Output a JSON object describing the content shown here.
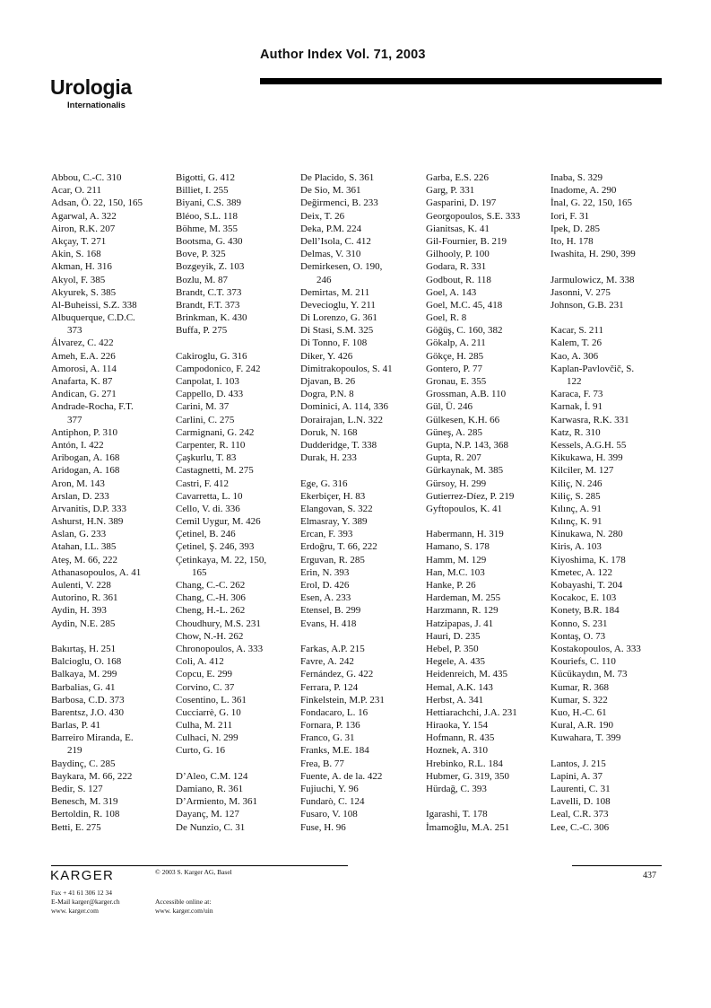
{
  "header": {
    "title": "Author Index Vol. 71, 2003",
    "journal_name": "Urologia",
    "journal_subname": "Internationalis"
  },
  "columns": [
    [
      [
        "Abbou, C.-C.  310"
      ],
      [
        "Acar, O.  211"
      ],
      [
        "Adsan, Ö.  22, 150, 165"
      ],
      [
        "Agarwal, A.  322"
      ],
      [
        "Airon, R.K.  207"
      ],
      [
        "Akçay, T.  271"
      ],
      [
        "Akin, S.  168"
      ],
      [
        "Akman, H.  316"
      ],
      [
        "Akyol, F.  385"
      ],
      [
        "Akyurek, S.  385"
      ],
      [
        "Al-Buheissi, S.Z.  338"
      ],
      [
        "Albuquerque, C.D.C.",
        "373"
      ],
      [
        "Álvarez, C.  422"
      ],
      [
        "Ameh, E.A.  226"
      ],
      [
        "Amorosi, A.  114"
      ],
      [
        "Anafarta, K.  87"
      ],
      [
        "Andican, G.  271"
      ],
      [
        "Andrade-Rocha, F.T.",
        "377"
      ],
      [
        "Antiphon, P.  310"
      ],
      [
        "Antón, I.  422"
      ],
      [
        "Aribogan, A.  168"
      ],
      [
        "Aridogan, A.  168"
      ],
      [
        "Aron, M.  143"
      ],
      [
        "Arslan, D.  233"
      ],
      [
        "Arvanitis, D.P.  333"
      ],
      [
        "Ashurst, H.N.  389"
      ],
      [
        "Aslan, G.  233"
      ],
      [
        "Atahan, I.L.  385"
      ],
      [
        "Ateş, M.  66, 222"
      ],
      [
        "Athanasopoulos, A.  41"
      ],
      [
        "Aulenti, V.  228"
      ],
      [
        "Autorino, R.  361"
      ],
      [
        "Aydin, H.  393"
      ],
      [
        "Aydin, N.E.  285"
      ],
      [],
      [
        "Bakırtaş, H.  251"
      ],
      [
        "Balcioglu, O.  168"
      ],
      [
        "Balkaya, M.  299"
      ],
      [
        "Barbalias, G.  41"
      ],
      [
        "Barbosa, C.D.  373"
      ],
      [
        "Barentsz, J.O.  430"
      ],
      [
        "Barlas, P.  41"
      ],
      [
        "Barreiro Miranda, E.",
        "219"
      ],
      [
        "Baydinç, C.  285"
      ],
      [
        "Baykara, M.  66, 222"
      ],
      [
        "Bedir, S.  127"
      ],
      [
        "Benesch, M.  319"
      ],
      [
        "Bertoldin, R.  108"
      ],
      [
        "Betti, E.  275"
      ]
    ],
    [
      [
        "Bigotti, G.  412"
      ],
      [
        "Billiet, I.  255"
      ],
      [
        "Biyani, C.S.  389"
      ],
      [
        "Bléoo, S.L.  118"
      ],
      [
        "Böhme, M.  355"
      ],
      [
        "Bootsma, G.  430"
      ],
      [
        "Bove, P.  325"
      ],
      [
        "Bozgeyik, Z.  103"
      ],
      [
        "Bozlu, M.  87"
      ],
      [
        "Brandt, C.T.  373"
      ],
      [
        "Brandt, F.T.  373"
      ],
      [
        "Brinkman, K.  430"
      ],
      [
        "Buffa, P.  275"
      ],
      [],
      [
        "Cakiroglu, G.  316"
      ],
      [
        "Campodonico, F.  242"
      ],
      [
        "Canpolat, I.  103"
      ],
      [
        "Cappello, D.  433"
      ],
      [
        "Carini, M.  37"
      ],
      [
        "Carlini, C.  275"
      ],
      [
        "Carmignani, G.  242"
      ],
      [
        "Carpenter, R.  110"
      ],
      [
        "Çaşkurlu, T.  83"
      ],
      [
        "Castagnetti, M.  275"
      ],
      [
        "Castri, F.  412"
      ],
      [
        "Cavarretta, L.  10"
      ],
      [
        "Cello, V. di.  336"
      ],
      [
        "Cemil Uygur, M.  426"
      ],
      [
        "Çetinel, B.  246"
      ],
      [
        "Çetinel, Ş.  246, 393"
      ],
      [
        "Çetinkaya, M.  22, 150,",
        "165"
      ],
      [
        "Chang, C.-C.  262"
      ],
      [
        "Chang, C.-H.  306"
      ],
      [
        "Cheng, H.-L.  262"
      ],
      [
        "Choudhury, M.S.  231"
      ],
      [
        "Chow, N.-H.  262"
      ],
      [
        "Chronopoulos, A.  333"
      ],
      [
        "Coli, A.  412"
      ],
      [
        "Copcu, E.  299"
      ],
      [
        "Corvino, C.  37"
      ],
      [
        "Cosentino, L.  361"
      ],
      [
        "Cucciarrè, G.  10"
      ],
      [
        "Culha, M.  211"
      ],
      [
        "Culhaci, N.  299"
      ],
      [
        "Curto, G.  16"
      ],
      [],
      [
        "D’Aleo, C.M.  124"
      ],
      [
        "Damiano, R.  361"
      ],
      [
        "D’Armiento, M.  361"
      ],
      [
        "Dayanç, M.  127"
      ],
      [
        "De Nunzio, C.  31"
      ]
    ],
    [
      [
        "De Placido, S.  361"
      ],
      [
        "De Sio, M.  361"
      ],
      [
        "Değirmenci, B.  233"
      ],
      [
        "Deix, T.  26"
      ],
      [
        "Deka, P.M.  224"
      ],
      [
        "Dell’Isola, C.  412"
      ],
      [
        "Delmas, V.  310"
      ],
      [
        "Demirkesen, O.  190,",
        "246"
      ],
      [
        "Demirtas, M.  211"
      ],
      [
        "Devecioglu, Y.  211"
      ],
      [
        "Di Lorenzo, G.  361"
      ],
      [
        "Di Stasi, S.M.  325"
      ],
      [
        "Di Tonno, F.  108"
      ],
      [
        "Diker, Y.  426"
      ],
      [
        "Dimitrakopoulos, S.  41"
      ],
      [
        "Djavan, B.  26"
      ],
      [
        "Dogra, P.N.  8"
      ],
      [
        "Dominici, A.  114, 336"
      ],
      [
        "Dorairajan, L.N.  322"
      ],
      [
        "Doruk, N.  168"
      ],
      [
        "Dudderidge, T.  338"
      ],
      [
        "Durak, H.  233"
      ],
      [],
      [
        "Ege, G.  316"
      ],
      [
        "Ekerbiçer, H.  83"
      ],
      [
        "Elangovan, S.  322"
      ],
      [
        "Elmasray, Y.  389"
      ],
      [
        "Ercan, F.  393"
      ],
      [
        "Erdoğru, T.  66, 222"
      ],
      [
        "Erguvan, R.  285"
      ],
      [
        "Erin, N.  393"
      ],
      [
        "Erol, D.  426"
      ],
      [
        "Esen, A.  233"
      ],
      [
        "Etensel, B.  299"
      ],
      [
        "Evans, H.  418"
      ],
      [],
      [
        "Farkas, A.P.  215"
      ],
      [
        "Favre, A.  242"
      ],
      [
        "Fernández, G.  422"
      ],
      [
        "Ferrara, P.  124"
      ],
      [
        "Finkelstein, M.P.  231"
      ],
      [
        "Fondacaro, L.  16"
      ],
      [
        "Fornara, P.  136"
      ],
      [
        "Franco, G.  31"
      ],
      [
        "Franks, M.E.  184"
      ],
      [
        "Frea, B.  77"
      ],
      [
        "Fuente, A. de la.  422"
      ],
      [
        "Fujiuchi, Y.  96"
      ],
      [
        "Fundarò, C.  124"
      ],
      [
        "Fusaro, V.  108"
      ],
      [
        "Fuse, H.  96"
      ]
    ],
    [
      [
        "Garba, E.S.  226"
      ],
      [
        "Garg, P.  331"
      ],
      [
        "Gasparini, D.  197"
      ],
      [
        "Georgopoulos, S.E.  333"
      ],
      [
        "Gianitsas, K.  41"
      ],
      [
        "Gil-Fournier, B.  219"
      ],
      [
        "Gilhooly, P.  100"
      ],
      [
        "Godara, R.  331"
      ],
      [
        "Godbout, R.  118"
      ],
      [
        "Goel, A.  143"
      ],
      [
        "Goel, M.C.  45, 418"
      ],
      [
        "Goel, R.  8"
      ],
      [
        "Göğüş, C.  160, 382"
      ],
      [
        "Gökalp, A.  211"
      ],
      [
        "Gökçe, H.  285"
      ],
      [
        "Gontero, P.  77"
      ],
      [
        "Gronau, E.  355"
      ],
      [
        "Grossman, A.B.  110"
      ],
      [
        "Gül, Ü.  246"
      ],
      [
        "Gülkesen, K.H.  66"
      ],
      [
        "Güneş, A.  285"
      ],
      [
        "Gupta, N.P.  143, 368"
      ],
      [
        "Gupta, R.  207"
      ],
      [
        "Gürkaynak, M.  385"
      ],
      [
        "Gürsoy, H.  299"
      ],
      [
        "Gutierrez-Díez, P.  219"
      ],
      [
        "Gyftopoulos, K.  41"
      ],
      [],
      [
        "Habermann, H.  319"
      ],
      [
        "Hamano, S.  178"
      ],
      [
        "Hamm, M.  129"
      ],
      [
        "Han, M.C.  103"
      ],
      [
        "Hanke, P.  26"
      ],
      [
        "Hardeman, M.  255"
      ],
      [
        "Harzmann, R.  129"
      ],
      [
        "Hatzipapas, J.  41"
      ],
      [
        "Hauri, D.  235"
      ],
      [
        "Hebel, P.  350"
      ],
      [
        "Hegele, A.  435"
      ],
      [
        "Heidenreich, M.  435"
      ],
      [
        "Hemal, A.K.  143"
      ],
      [
        "Herbst, A.  341"
      ],
      [
        "Hettiarachchi, J.A.  231"
      ],
      [
        "Hiraoka, Y.  154"
      ],
      [
        "Hofmann, R.  435"
      ],
      [
        "Hoznek, A.  310"
      ],
      [
        "Hrebinko, R.L.  184"
      ],
      [
        "Hubmer, G.  319, 350"
      ],
      [
        "Hürdağ, C.  393"
      ],
      [],
      [
        "Igarashi, T.  178"
      ],
      [
        "İmamoğlu, M.A.  251"
      ]
    ],
    [
      [
        "Inaba, S.  329"
      ],
      [
        "Inadome, A.  290"
      ],
      [
        "İnal, G.  22, 150, 165"
      ],
      [
        "Iori, F.  31"
      ],
      [
        "Ipek, D.  285"
      ],
      [
        "Ito, H.  178"
      ],
      [
        "Iwashita, H.  290, 399"
      ],
      [],
      [
        "Jarmulowicz, M.  338"
      ],
      [
        "Jasonni, V.  275"
      ],
      [
        "Johnson, G.B.  231"
      ],
      [],
      [
        "Kacar, S.  211"
      ],
      [
        "Kalem, T.  26"
      ],
      [
        "Kao, A.  306"
      ],
      [
        "Kaplan-Pavlovčič, S.",
        "122"
      ],
      [
        "Karaca, F.  73"
      ],
      [
        "Karnak, İ.  91"
      ],
      [
        "Karwasra, R.K.  331"
      ],
      [
        "Katz, R.  310"
      ],
      [
        "Kessels, A.G.H.  55"
      ],
      [
        "Kikukawa, H.  399"
      ],
      [
        "Kilciler, M.  127"
      ],
      [
        "Kiliç, N.  246"
      ],
      [
        "Kiliç, S.  285"
      ],
      [
        "Kılınç, A.  91"
      ],
      [
        "Kılınç, K.  91"
      ],
      [
        "Kinukawa, N.  280"
      ],
      [
        "Kiris, A.  103"
      ],
      [
        "Kiyoshima, K.  178"
      ],
      [
        "Kmetec, A.  122"
      ],
      [
        "Kobayashi, T.  204"
      ],
      [
        "Kocakoc, E.  103"
      ],
      [
        "Konety, B.R.  184"
      ],
      [
        "Konno, S.  231"
      ],
      [
        "Kontaş, O.  73"
      ],
      [
        "Kostakopoulos, A.  333"
      ],
      [
        "Kouriefs, C.  110"
      ],
      [
        "Kücükaydın, M.  73"
      ],
      [
        "Kumar, R.  368"
      ],
      [
        "Kumar, S.  322"
      ],
      [
        "Kuo, H.-C.  61"
      ],
      [
        "Kural, A.R.  190"
      ],
      [
        "Kuwahara, T.  399"
      ],
      [],
      [
        "Lantos, J.  215"
      ],
      [
        "Lapini, A.  37"
      ],
      [
        "Laurenti, C.  31"
      ],
      [
        "Lavelli, D.  108"
      ],
      [
        "Leal, C.R.  373"
      ],
      [
        "Lee, C.-C.  306"
      ]
    ]
  ],
  "footer": {
    "publisher_logo": "KARGER",
    "copyright": "© 2003 S. Karger AG, Basel",
    "fax": "Fax + 41 61 306 12 34",
    "email": "E-Mail karger@karger.ch",
    "website": "www. karger.com",
    "online_label": "Accessible online at:",
    "online_url": "www. karger.com/uin",
    "page_number": "437"
  }
}
